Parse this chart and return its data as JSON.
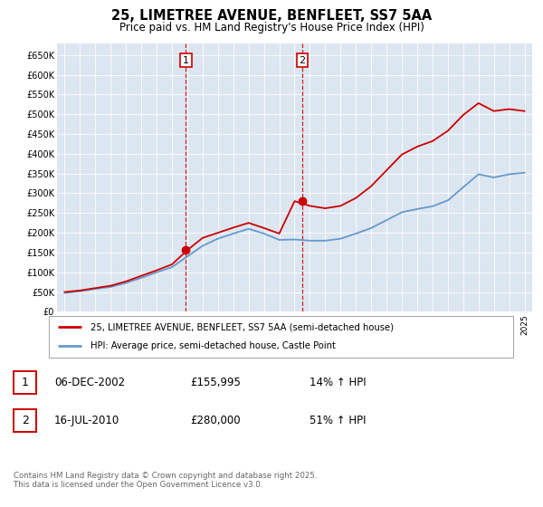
{
  "title": "25, LIMETREE AVENUE, BENFLEET, SS7 5AA",
  "subtitle": "Price paid vs. HM Land Registry's House Price Index (HPI)",
  "ylim": [
    0,
    680000
  ],
  "yticks": [
    0,
    50000,
    100000,
    150000,
    200000,
    250000,
    300000,
    350000,
    400000,
    450000,
    500000,
    550000,
    600000,
    650000
  ],
  "ytick_labels": [
    "£0",
    "£50K",
    "£100K",
    "£150K",
    "£200K",
    "£250K",
    "£300K",
    "£350K",
    "£400K",
    "£450K",
    "£500K",
    "£550K",
    "£600K",
    "£650K"
  ],
  "bg_color": "#dce6f1",
  "line1_color": "#cc0000",
  "line2_color": "#6699cc",
  "vline_color": "#cc0000",
  "transaction1": {
    "date": "06-DEC-2002",
    "price": 155995,
    "label": "1",
    "pct": "14% ↑ HPI"
  },
  "transaction2": {
    "date": "16-JUL-2010",
    "price": 280000,
    "label": "2",
    "pct": "51% ↑ HPI"
  },
  "legend1": "25, LIMETREE AVENUE, BENFLEET, SS7 5AA (semi-detached house)",
  "legend2": "HPI: Average price, semi-detached house, Castle Point",
  "footer": "Contains HM Land Registry data © Crown copyright and database right 2025.\nThis data is licensed under the Open Government Licence v3.0.",
  "hpi_years": [
    1995,
    1996,
    1997,
    1998,
    1999,
    2000,
    2001,
    2002,
    2003,
    2004,
    2005,
    2006,
    2007,
    2008,
    2009,
    2010,
    2011,
    2012,
    2013,
    2014,
    2015,
    2016,
    2017,
    2018,
    2019,
    2020,
    2021,
    2022,
    2023,
    2024,
    2025
  ],
  "hpi_values": [
    48000,
    52000,
    58000,
    63000,
    73000,
    86000,
    100000,
    113000,
    140000,
    167000,
    185000,
    198000,
    210000,
    198000,
    182000,
    183000,
    180000,
    180000,
    185000,
    198000,
    212000,
    232000,
    252000,
    260000,
    267000,
    282000,
    315000,
    348000,
    340000,
    348000,
    352000
  ],
  "price_years": [
    1995,
    1996,
    1997,
    1998,
    1999,
    2000,
    2001,
    2002,
    2003,
    2004,
    2005,
    2006,
    2007,
    2008,
    2009,
    2010,
    2011,
    2012,
    2013,
    2014,
    2015,
    2016,
    2017,
    2018,
    2019,
    2020,
    2021,
    2022,
    2023,
    2024,
    2025
  ],
  "price_values": [
    50000,
    54000,
    60000,
    66000,
    77000,
    91000,
    105000,
    120000,
    155995,
    187000,
    200000,
    213000,
    225000,
    212000,
    198000,
    280000,
    268000,
    262000,
    268000,
    288000,
    318000,
    358000,
    398000,
    418000,
    432000,
    458000,
    498000,
    528000,
    508000,
    513000,
    508000
  ],
  "vline1_x": 2002.9,
  "vline2_x": 2010.5,
  "xmin": 1994.5,
  "xmax": 2025.5
}
